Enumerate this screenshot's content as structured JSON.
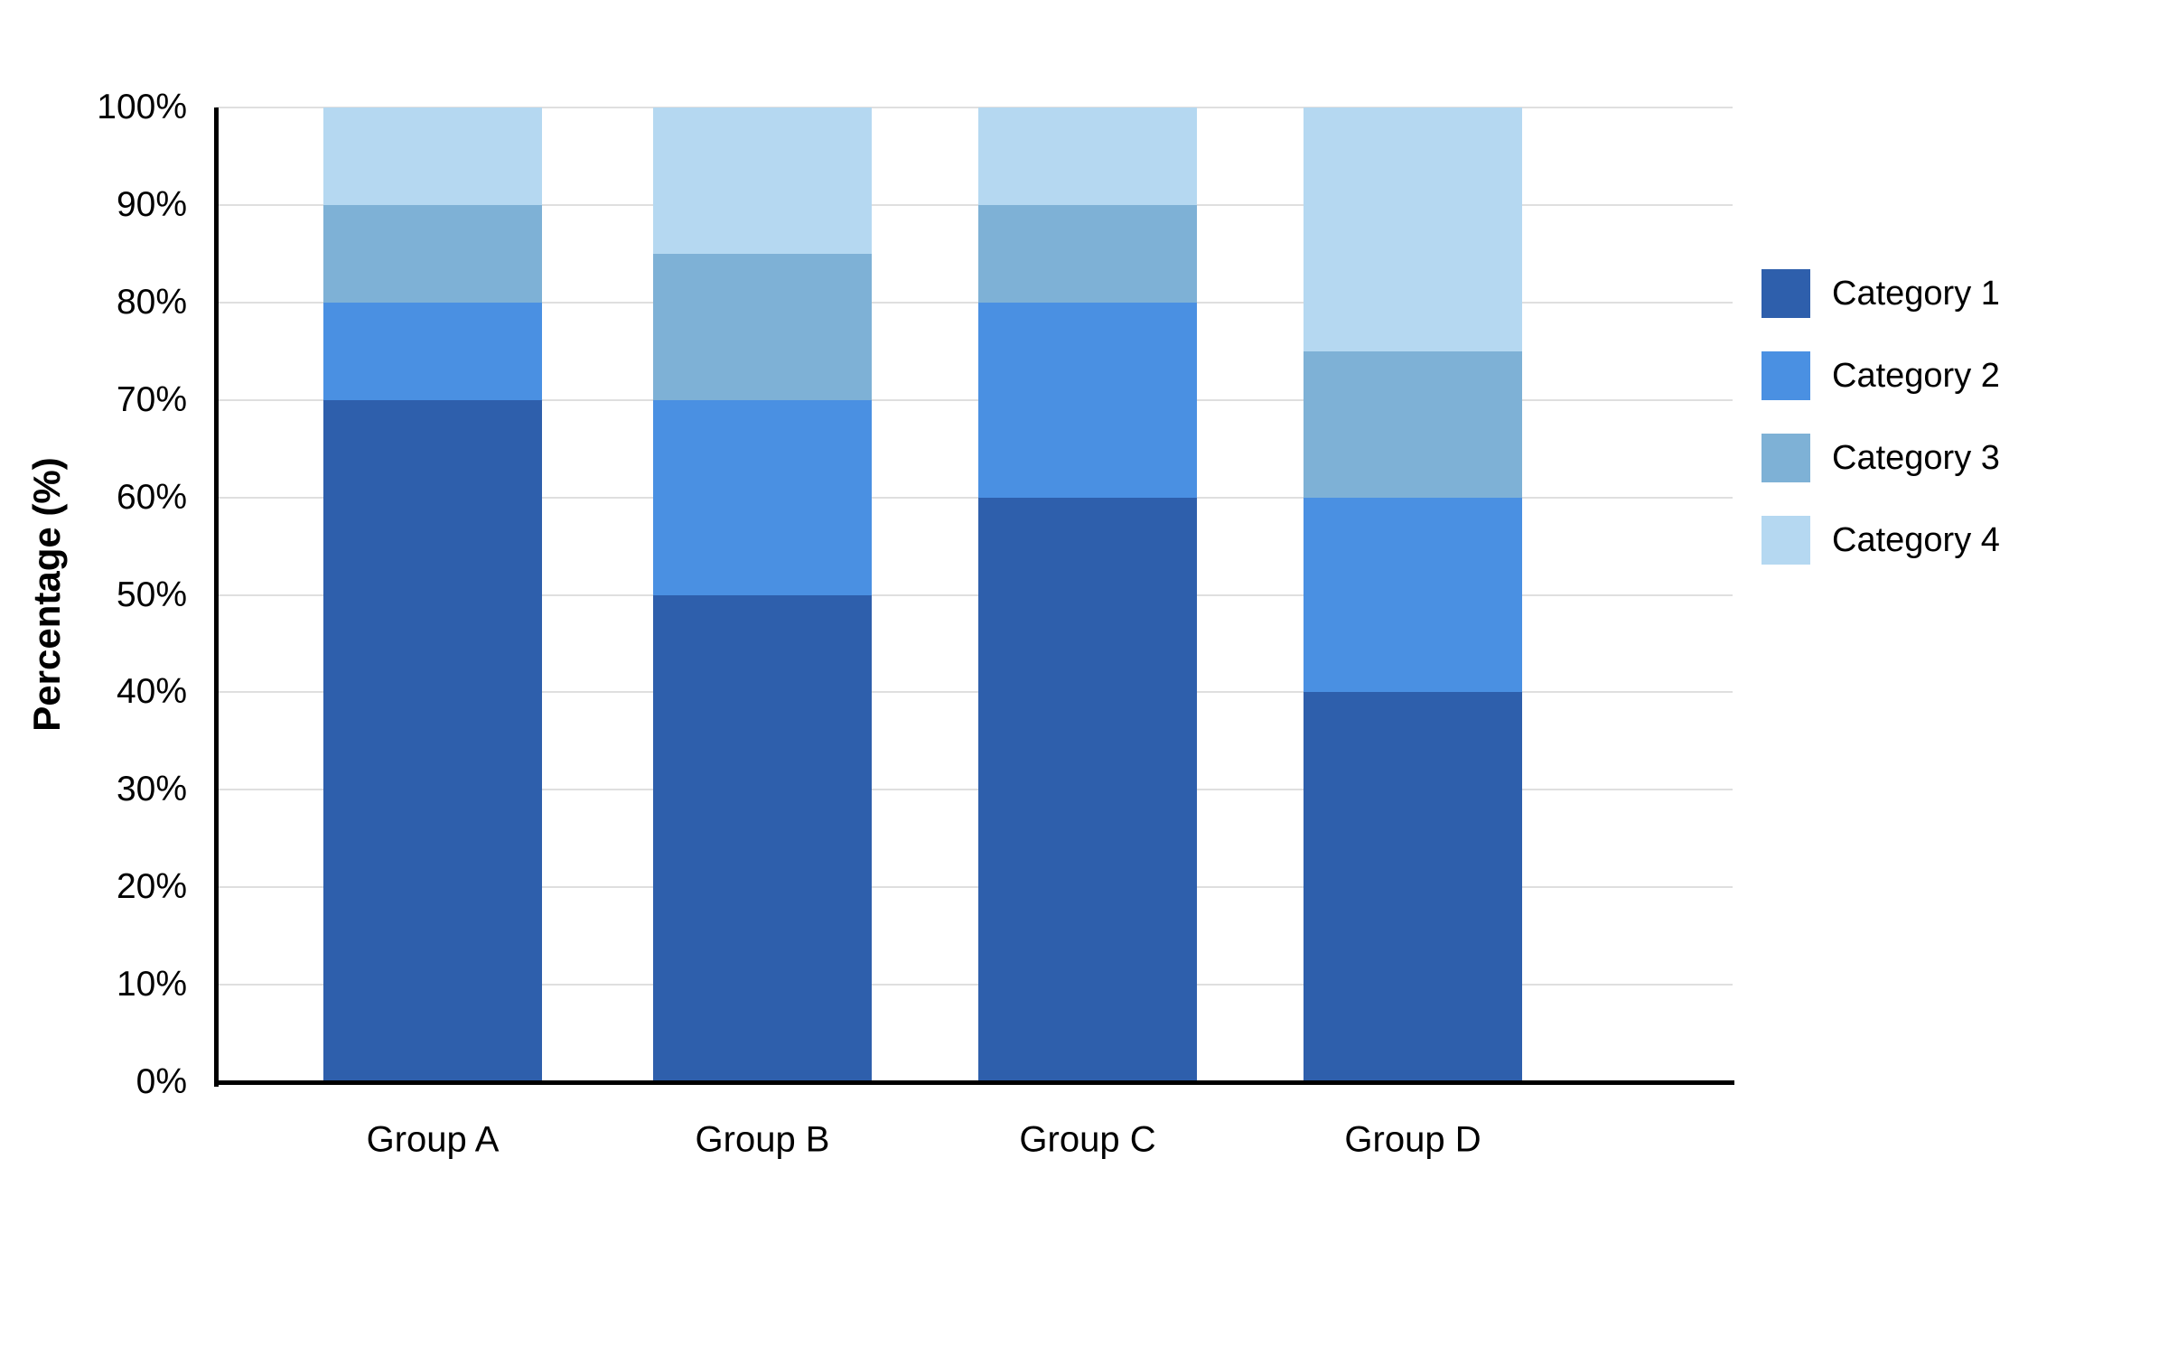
{
  "chart_data": {
    "type": "bar",
    "stacked": true,
    "percent_stacked": true,
    "title": "",
    "xlabel": "",
    "ylabel": "Percentage (%)",
    "ylim": [
      0,
      100
    ],
    "grid": true,
    "legend_position": "right",
    "categories": [
      "Group A",
      "Group B",
      "Group C",
      "Group D"
    ],
    "y_ticks": [
      "0%",
      "10%",
      "20%",
      "30%",
      "40%",
      "50%",
      "60%",
      "70%",
      "80%",
      "90%",
      "100%"
    ],
    "series": [
      {
        "name": "Category 1",
        "color": "#2E5FAC",
        "values": [
          70,
          50,
          60,
          40
        ]
      },
      {
        "name": "Category 2",
        "color": "#4A90E2",
        "values": [
          10,
          20,
          20,
          20
        ]
      },
      {
        "name": "Category 3",
        "color": "#7EB1D6",
        "values": [
          10,
          15,
          10,
          15
        ]
      },
      {
        "name": "Category 4",
        "color": "#B5D8F1",
        "values": [
          10,
          15,
          10,
          25
        ]
      }
    ],
    "colors": {
      "gridline": "#DFDFDF",
      "axis": "#000000",
      "text": "#000000",
      "background": "#FFFFFF"
    }
  }
}
